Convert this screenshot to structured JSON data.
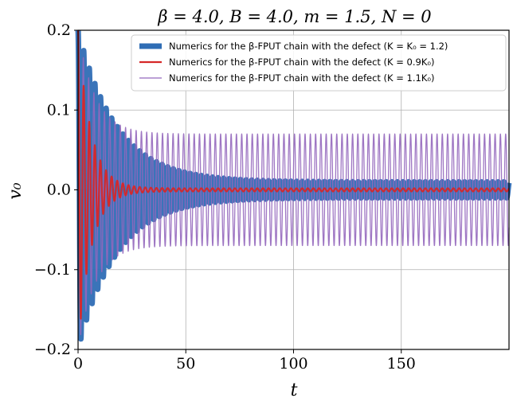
{
  "chart_data": {
    "type": "line",
    "title": "β = 4.0,  B = 4.0,  m = 1.5,  N = 0",
    "xlabel": "t",
    "ylabel": "v₀",
    "xlim": [
      0,
      200
    ],
    "ylim": [
      -0.2,
      0.2
    ],
    "xticks": [
      0,
      50,
      100,
      150
    ],
    "xtick_labels": [
      "0",
      "50",
      "100",
      "150"
    ],
    "yticks": [
      -0.2,
      -0.1,
      0.0,
      0.1,
      0.2
    ],
    "ytick_labels": [
      "−0.2",
      "−0.1",
      "0.0",
      "0.1",
      "0.2"
    ],
    "grid": true,
    "legend_position": "top-right",
    "series": [
      {
        "name": "Numerics for the β-FPUT chain with the defect (K = K₀ = 1.2)",
        "color": "#2f6db5",
        "period": 2.6,
        "initial_amplitude": 0.2,
        "final_amplitude": 0.01,
        "decay_time": 18
      },
      {
        "name": "Numerics for the β-FPUT chain with the defect (K = 0.9K₀)",
        "color": "#d62728",
        "period": 2.6,
        "initial_amplitude": 0.2,
        "final_amplitude": 0.002,
        "decay_time": 6
      },
      {
        "name": "Numerics for the β-FPUT chain with the defect (K = 1.1K₀)",
        "color": "#9467bd",
        "period": 2.45,
        "initial_amplitude": 0.2,
        "final_amplitude": 0.07,
        "decay_time": 8
      }
    ]
  }
}
